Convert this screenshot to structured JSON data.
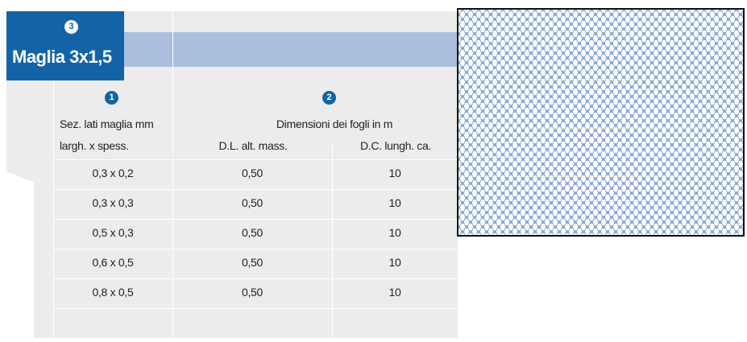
{
  "title": {
    "badge": "3",
    "text": "Maglia 3x1,5"
  },
  "col1": {
    "badge": "1",
    "header_line1": "Sez. lati maglia mm",
    "header_line2": "largh. x spess."
  },
  "col2": {
    "badge": "2",
    "group_header": "Dimensioni dei fogli in m",
    "sub_left": "D.L. alt. mass.",
    "sub_right": "D.C. lungh. ca."
  },
  "rows": [
    {
      "size": "0,3 x 0,2",
      "height": "0,50",
      "length": "10"
    },
    {
      "size": "0,3 x 0,3",
      "height": "0,50",
      "length": "10"
    },
    {
      "size": "0,5 x 0,3",
      "height": "0,50",
      "length": "10"
    },
    {
      "size": "0,6 x 0,5",
      "height": "0,50",
      "length": "10"
    },
    {
      "size": "0,8 x 0,5",
      "height": "0,50",
      "length": "10"
    }
  ],
  "colors": {
    "brand_blue": "#1264a6",
    "band_blue": "#a9bfdd",
    "table_gray": "#ececec",
    "mesh_blue": "#8ea8d6"
  }
}
